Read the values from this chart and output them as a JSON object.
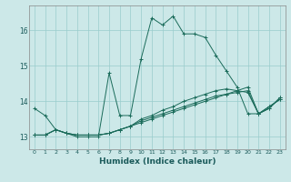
{
  "xlabel": "Humidex (Indice chaleur)",
  "bg_color": "#cce8e8",
  "grid_color": "#99cccc",
  "line_color": "#1a6b5a",
  "xlim": [
    -0.5,
    23.5
  ],
  "ylim": [
    12.65,
    16.7
  ],
  "xticks": [
    0,
    1,
    2,
    3,
    4,
    5,
    6,
    7,
    8,
    9,
    10,
    11,
    12,
    13,
    14,
    15,
    16,
    17,
    18,
    19,
    20,
    21,
    22,
    23
  ],
  "yticks": [
    13,
    14,
    15,
    16
  ],
  "series": [
    [
      13.8,
      13.6,
      13.2,
      13.1,
      13.0,
      13.0,
      13.0,
      14.8,
      13.6,
      13.6,
      15.2,
      16.35,
      16.15,
      16.4,
      15.9,
      15.9,
      15.8,
      15.3,
      14.85,
      14.4,
      13.65,
      13.65,
      13.8,
      14.1
    ],
    [
      13.05,
      13.05,
      13.2,
      13.1,
      13.05,
      13.05,
      13.05,
      13.1,
      13.2,
      13.3,
      13.5,
      13.6,
      13.75,
      13.85,
      14.0,
      14.1,
      14.2,
      14.3,
      14.35,
      14.3,
      14.25,
      13.65,
      13.8,
      14.1
    ],
    [
      13.05,
      13.05,
      13.2,
      13.1,
      13.05,
      13.05,
      13.05,
      13.1,
      13.2,
      13.3,
      13.45,
      13.55,
      13.65,
      13.75,
      13.85,
      13.95,
      14.05,
      14.15,
      14.2,
      14.25,
      14.3,
      13.65,
      13.85,
      14.05
    ],
    [
      13.05,
      13.05,
      13.2,
      13.1,
      13.05,
      13.05,
      13.05,
      13.1,
      13.2,
      13.3,
      13.4,
      13.5,
      13.6,
      13.7,
      13.8,
      13.9,
      14.0,
      14.1,
      14.2,
      14.3,
      14.4,
      13.65,
      13.85,
      14.05
    ]
  ]
}
